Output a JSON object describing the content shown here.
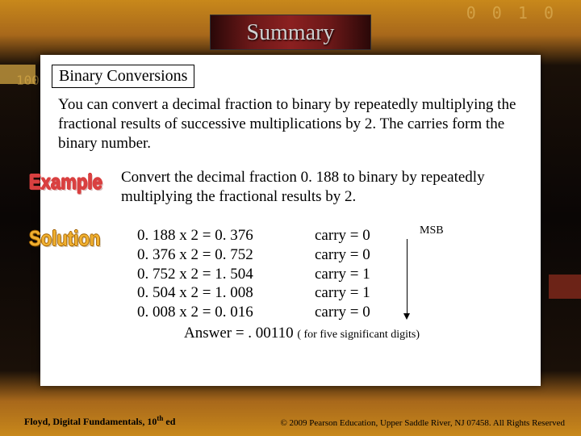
{
  "title": "Summary",
  "section_label": "Binary Conversions",
  "body_text": "You can convert a decimal fraction to binary by repeatedly multiplying the fractional results of successive multiplications by 2. The carries form the binary number.",
  "example_label": "Example",
  "solution_label": "Solution",
  "example_text": "Convert the decimal fraction 0. 188 to binary by repeatedly multiplying the fractional results by 2.",
  "calc": {
    "rows": [
      "0. 188 x 2 = 0. 376",
      "0. 376 x 2 = 0. 752",
      "0. 752 x 2 = 1. 504",
      "0. 504 x 2 = 1. 008",
      "0. 008 x 2 = 0. 016"
    ],
    "carries": [
      "carry = 0",
      "carry = 0",
      "carry = 1",
      "carry = 1",
      "carry = 0"
    ]
  },
  "msb_label": "MSB",
  "answer_prefix": "Answer = . 00110 ",
  "answer_note": "( for five significant digits)",
  "footer_left_pre": "Floyd, Digital Fundamentals, 10",
  "footer_left_sup": "th",
  "footer_left_post": " ed",
  "footer_right": "© 2009 Pearson Education, Upper Saddle River, NJ 07458. All Rights Reserved",
  "decor": {
    "digits1": "0 0 1 0",
    "digits2": "100."
  },
  "colors": {
    "bg_gold": "#c8881b",
    "bg_dark": "#0a0605",
    "panel": "#ffffff",
    "title_grad_dark": "#2a0808",
    "title_grad_mid": "#8b2020",
    "example_red": "#d94040",
    "solution_gold": "#f0b030"
  }
}
